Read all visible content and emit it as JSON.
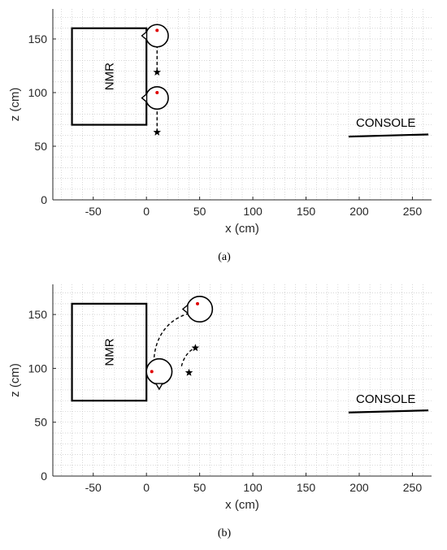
{
  "chart_data": [
    {
      "type": "scatter",
      "caption": "(a)",
      "xlabel": "x (cm)",
      "ylabel": "z (cm)",
      "xlim": [
        -88,
        268
      ],
      "ylim": [
        0,
        178
      ],
      "xticks": [
        -50,
        0,
        50,
        100,
        150,
        200,
        250
      ],
      "yticks": [
        0,
        50,
        100,
        150
      ],
      "grid": "minor dotted",
      "nmr": {
        "label": "NMR",
        "x": [
          -70,
          0
        ],
        "z": [
          70,
          160
        ]
      },
      "console": {
        "label": "CONSOLE",
        "x": [
          190,
          265
        ],
        "z": [
          59,
          61
        ],
        "label_at": [
          225,
          68
        ]
      },
      "heads": [
        {
          "x": 10,
          "z": 153,
          "r": 7,
          "eye": [
            10,
            158
          ],
          "facing": "left"
        },
        {
          "x": 10,
          "z": 95,
          "r": 7,
          "eye": [
            10,
            100
          ],
          "facing": "left"
        }
      ],
      "paths": [
        {
          "x": [
            10,
            10
          ],
          "z": [
            150,
            121
          ]
        },
        {
          "x": [
            10,
            10
          ],
          "z": [
            93,
            65
          ]
        }
      ],
      "stars": {
        "x": [
          10,
          10
        ],
        "z": [
          119,
          63
        ]
      }
    },
    {
      "type": "scatter",
      "caption": "(b)",
      "xlabel": "x (cm)",
      "ylabel": "z (cm)",
      "xlim": [
        -88,
        268
      ],
      "ylim": [
        0,
        178
      ],
      "xticks": [
        -50,
        0,
        50,
        100,
        150,
        200,
        250
      ],
      "yticks": [
        0,
        50,
        100,
        150
      ],
      "grid": "minor dotted",
      "nmr": {
        "label": "NMR",
        "x": [
          -70,
          0
        ],
        "z": [
          70,
          160
        ]
      },
      "console": {
        "label": "CONSOLE",
        "x": [
          190,
          265
        ],
        "z": [
          59,
          61
        ],
        "label_at": [
          225,
          68
        ]
      },
      "heads": [
        {
          "x": 50,
          "z": 155,
          "r": 8,
          "eye": [
            48,
            160
          ],
          "facing": "left"
        },
        {
          "x": 12,
          "z": 97,
          "r": 8,
          "eye": [
            5,
            97
          ],
          "facing": "down"
        }
      ],
      "paths": [
        {
          "x": [
            7,
            7,
            20,
            45
          ],
          "z": [
            105,
            128,
            148,
            152
          ]
        },
        {
          "x": [
            33,
            34,
            38,
            46
          ],
          "z": [
            102,
            107,
            116,
            119
          ]
        }
      ],
      "stars": {
        "x": [
          46,
          40
        ],
        "z": [
          119,
          96
        ]
      }
    }
  ],
  "colors": {
    "wall": "#000000",
    "grid": "#c8c8c8",
    "axis": "#262626",
    "eye": "#e00000"
  }
}
